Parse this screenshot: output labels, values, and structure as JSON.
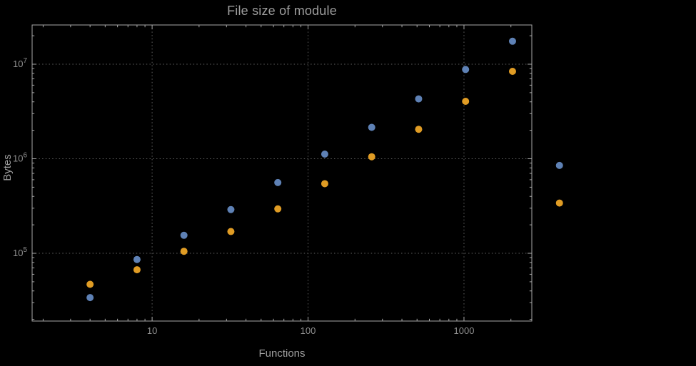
{
  "chart_data": {
    "type": "scatter",
    "title": "File size of module",
    "xlabel": "Functions",
    "ylabel": "Bytes",
    "x_scale": "log",
    "y_scale": "log",
    "xlim": [
      1.7,
      2723
    ],
    "ylim": [
      19200,
      26000000
    ],
    "grid": "dotted",
    "legend": "none",
    "x_ticks": [
      {
        "value": 10,
        "label": "10"
      },
      {
        "value": 100,
        "label": "100"
      },
      {
        "value": 1000,
        "label": "1000"
      }
    ],
    "y_ticks": [
      {
        "value": 100000,
        "base": "10",
        "exp": "5"
      },
      {
        "value": 1000000,
        "base": "10",
        "exp": "6"
      },
      {
        "value": 10000000,
        "base": "10",
        "exp": "7"
      }
    ],
    "series": [
      {
        "name": "series-blue",
        "color": "#5e81b5",
        "points": [
          [
            4,
            34000
          ],
          [
            8,
            86000
          ],
          [
            16,
            155000
          ],
          [
            32,
            290000
          ],
          [
            64,
            560000
          ],
          [
            128,
            1120000
          ],
          [
            256,
            2150000
          ],
          [
            512,
            4300000
          ],
          [
            1024,
            8800000
          ],
          [
            2048,
            17500000
          ],
          [
            4096,
            850000
          ]
        ]
      },
      {
        "name": "series-orange",
        "color": "#e09c24",
        "points": [
          [
            4,
            47000
          ],
          [
            8,
            67000
          ],
          [
            16,
            105000
          ],
          [
            32,
            170000
          ],
          [
            64,
            295000
          ],
          [
            128,
            545000
          ],
          [
            256,
            1050000
          ],
          [
            512,
            2050000
          ],
          [
            1024,
            4050000
          ],
          [
            2048,
            8400000
          ],
          [
            4096,
            340000
          ]
        ]
      }
    ]
  },
  "colors": {
    "background": "#000000",
    "frame": "#a8a8a8",
    "grid": "#606060",
    "title": "#9e9e9e",
    "axis_label": "#9e9e9e",
    "tick_label": "#8f8f8f",
    "series1": "#5e81b5",
    "series2": "#e09c24"
  }
}
